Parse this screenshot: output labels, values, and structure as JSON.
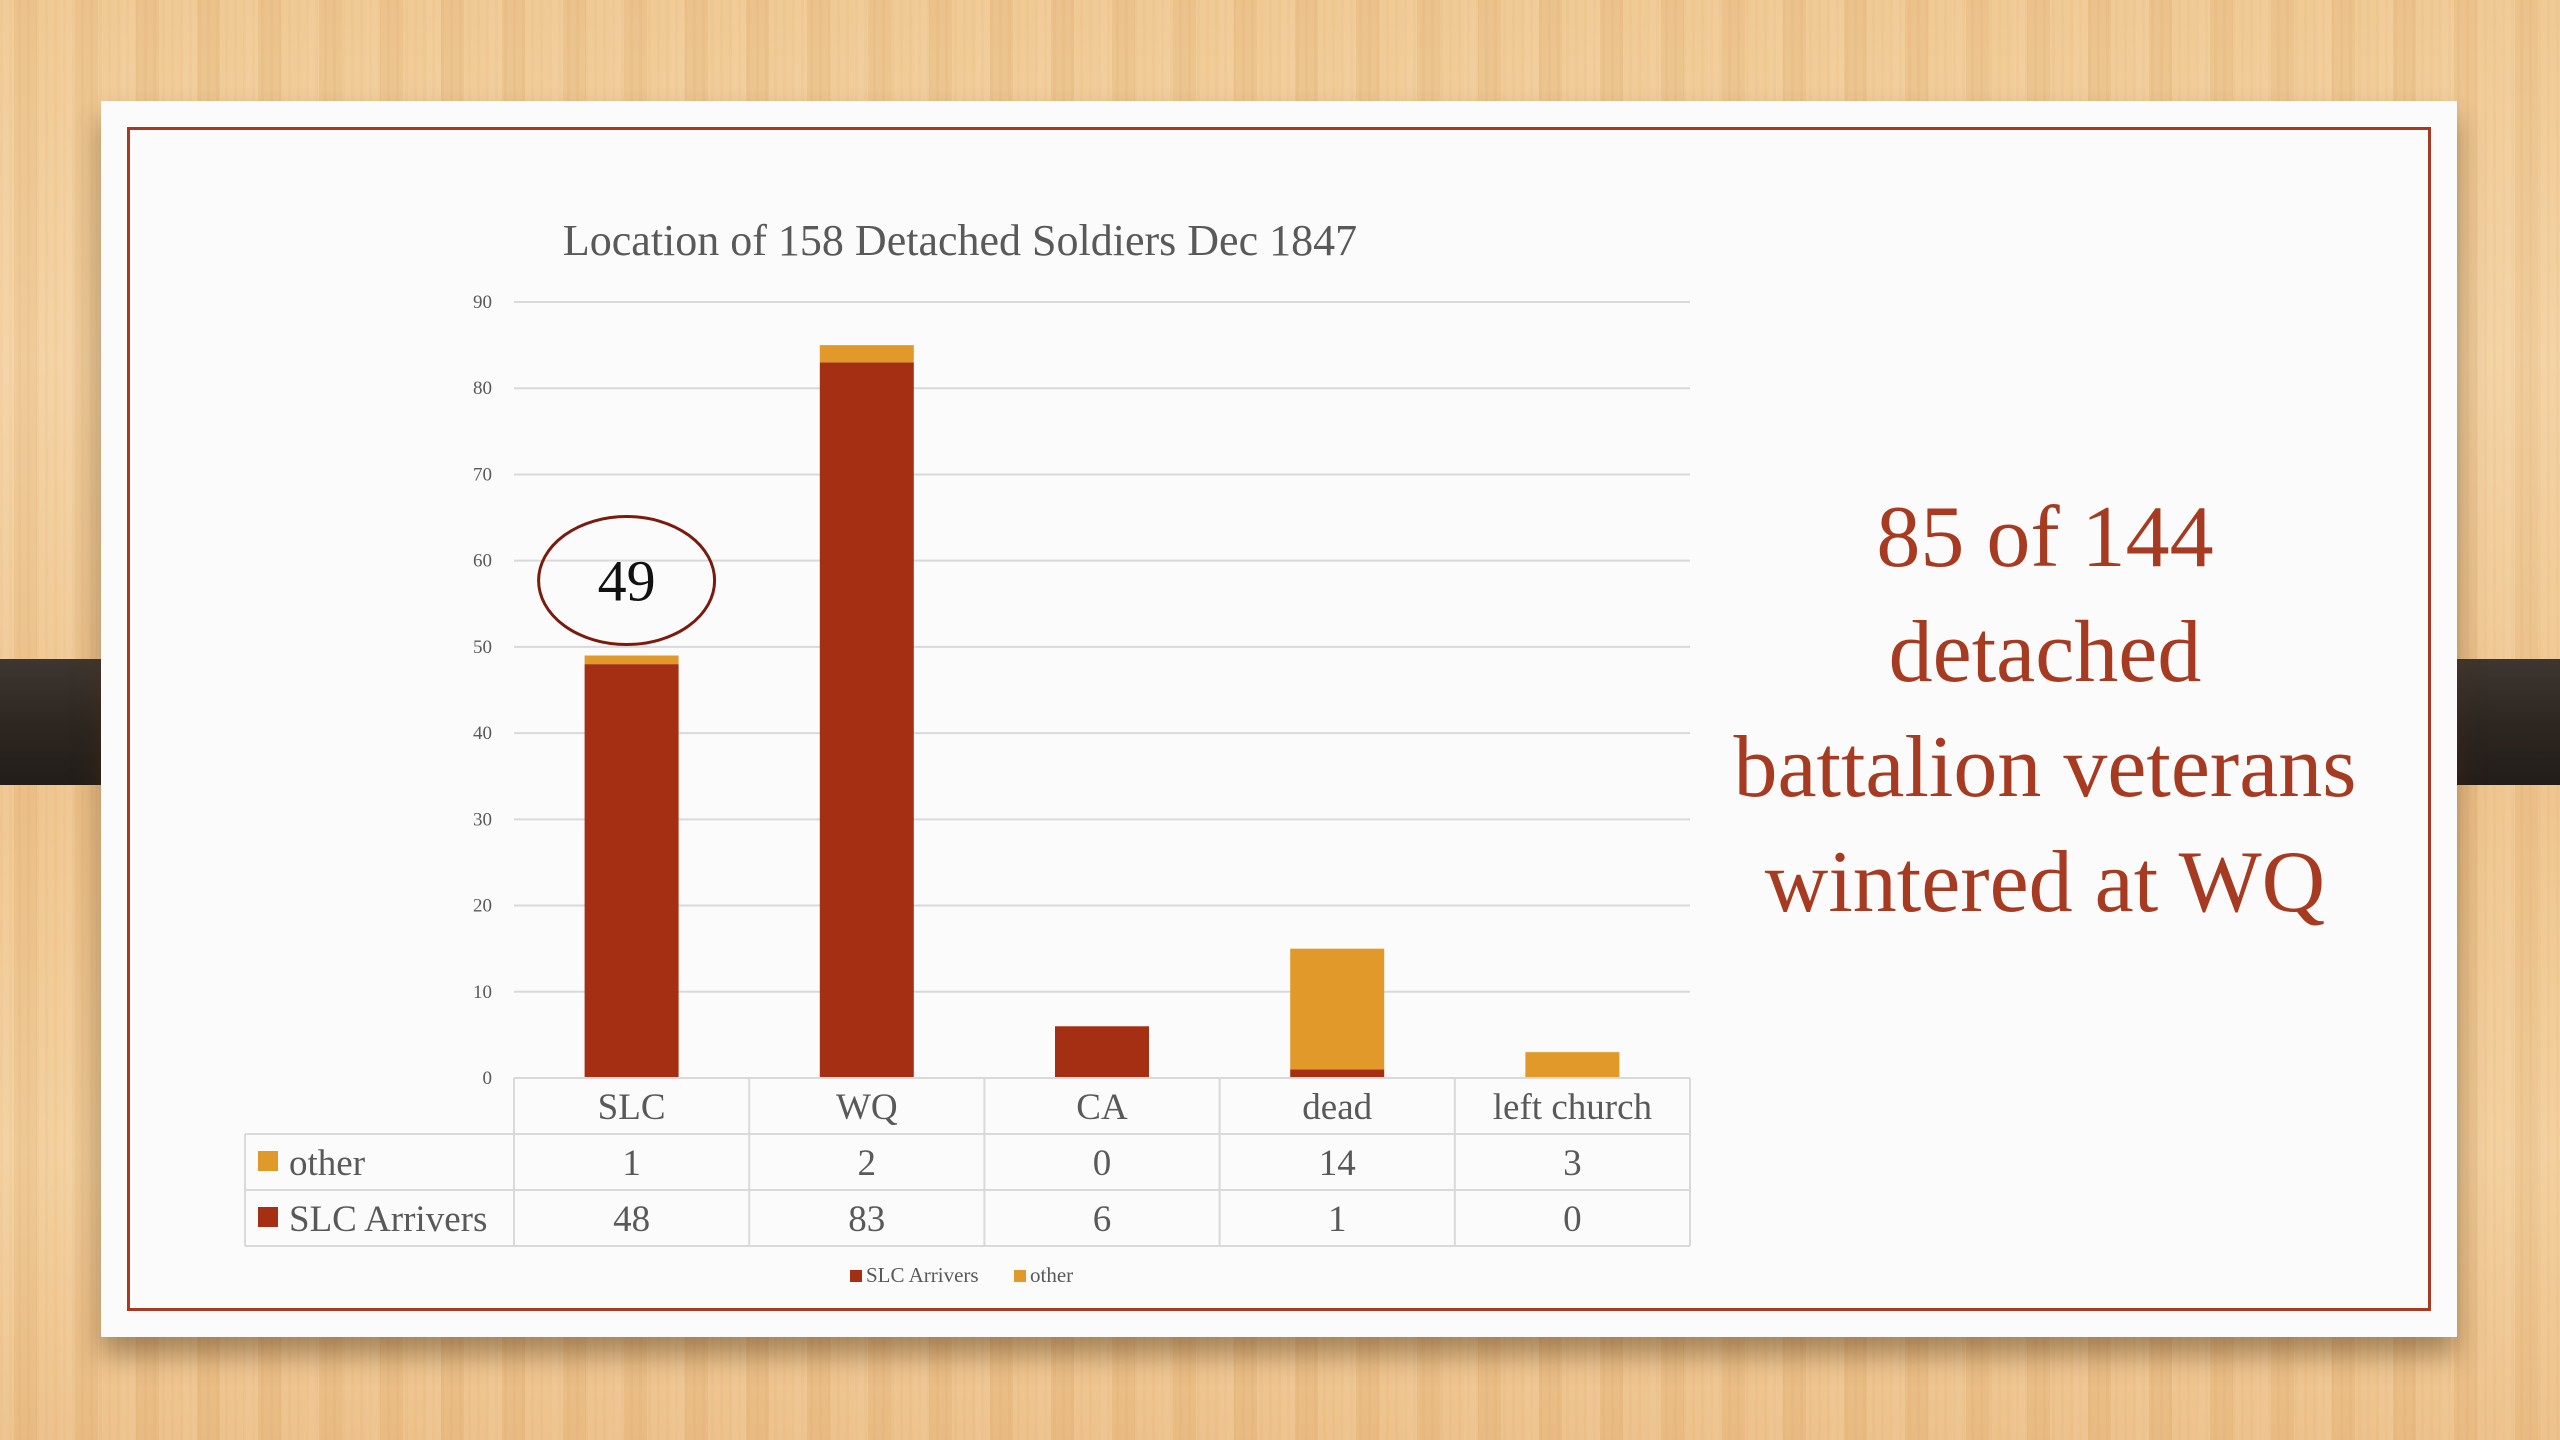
{
  "chart_data": {
    "type": "bar",
    "stacked": true,
    "title": "Location of  158 Detached Soldiers Dec 1847",
    "categories": [
      "SLC",
      "WQ",
      "CA",
      "dead",
      "left church"
    ],
    "series": [
      {
        "name": "SLC Arrivers",
        "values": [
          48,
          83,
          6,
          1,
          0
        ],
        "color": "#a52f12"
      },
      {
        "name": "other",
        "values": [
          1,
          2,
          0,
          14,
          3
        ],
        "color": "#e19a2a"
      }
    ],
    "ylim": [
      0,
      90
    ],
    "yticks": [
      0,
      10,
      20,
      30,
      40,
      50,
      60,
      70,
      80,
      90
    ],
    "grid": true,
    "data_table": true,
    "legend": "bottom",
    "annotation": {
      "text": "49",
      "category": "SLC",
      "value": 49,
      "shape": "ellipse"
    }
  },
  "callout": {
    "lines": [
      "85 of 144",
      "detached",
      "battalion veterans",
      "wintered at WQ"
    ],
    "color": "#a73b22"
  },
  "colors": {
    "frame": "#a73b22",
    "slide_background": "#fbfbfb",
    "grid": "#d9d9d9",
    "text_gray": "#595959"
  }
}
